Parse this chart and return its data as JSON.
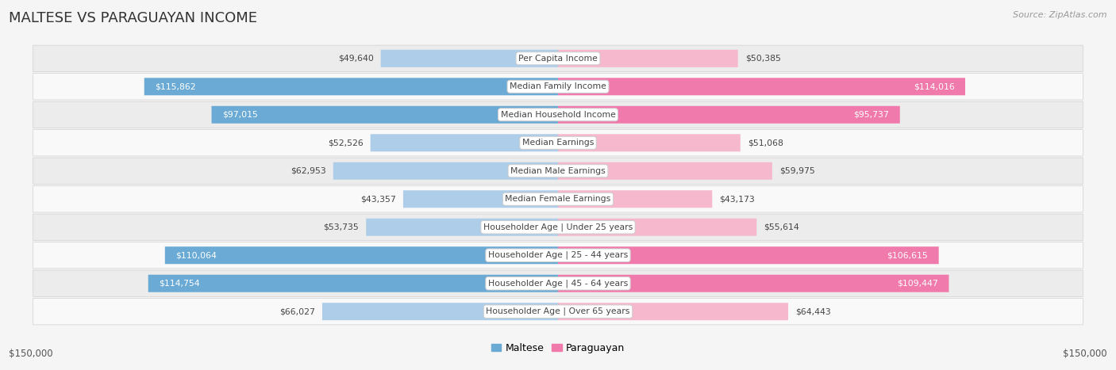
{
  "title": "MALTESE VS PARAGUAYAN INCOME",
  "source": "Source: ZipAtlas.com",
  "categories": [
    "Per Capita Income",
    "Median Family Income",
    "Median Household Income",
    "Median Earnings",
    "Median Male Earnings",
    "Median Female Earnings",
    "Householder Age | Under 25 years",
    "Householder Age | 25 - 44 years",
    "Householder Age | 45 - 64 years",
    "Householder Age | Over 65 years"
  ],
  "maltese_values": [
    49640,
    115862,
    97015,
    52526,
    62953,
    43357,
    53735,
    110064,
    114754,
    66027
  ],
  "paraguayan_values": [
    50385,
    114016,
    95737,
    51068,
    59975,
    43173,
    55614,
    106615,
    109447,
    64443
  ],
  "maltese_labels": [
    "$49,640",
    "$115,862",
    "$97,015",
    "$52,526",
    "$62,953",
    "$43,357",
    "$53,735",
    "$110,064",
    "$114,754",
    "$66,027"
  ],
  "paraguayan_labels": [
    "$50,385",
    "$114,016",
    "$95,737",
    "$51,068",
    "$59,975",
    "$43,173",
    "$55,614",
    "$106,615",
    "$109,447",
    "$64,443"
  ],
  "max_value": 150000,
  "maltese_color_light": "#aecde8",
  "maltese_color_dark": "#6aaad4",
  "paraguayan_color_light": "#f5b8cc",
  "paraguayan_color_dark": "#f07aab",
  "bg_color": "#f5f5f5",
  "row_bg_light": "#f0f0f0",
  "row_bg_dark": "#e8e8e8",
  "bar_height": 0.62,
  "white_label_threshold": 70000,
  "xlabel_left": "$150,000",
  "xlabel_right": "$150,000",
  "legend_maltese": "Maltese",
  "legend_paraguayan": "Paraguayan"
}
